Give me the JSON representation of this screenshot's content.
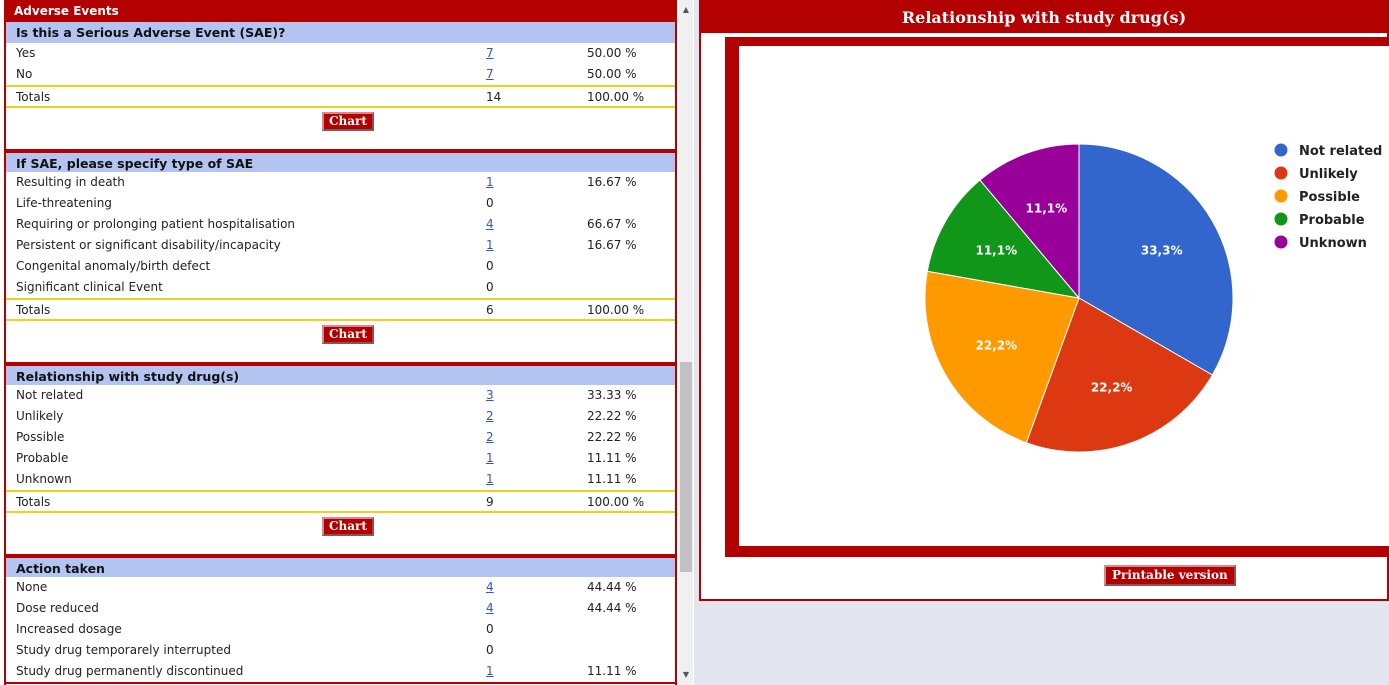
{
  "left_panel": {
    "title": "Adverse Events",
    "chart_button": "Chart",
    "sections": [
      {
        "question": "Is this a Serious Adverse Event (SAE)?",
        "rows": [
          {
            "label": "Yes",
            "count": "7",
            "pct": "50.00 %",
            "link": true
          },
          {
            "label": "No",
            "count": "7",
            "pct": "50.00 %",
            "link": true
          }
        ],
        "totals": {
          "label": "Totals",
          "count": "14",
          "pct": "100.00 %"
        }
      },
      {
        "question": "If SAE, please specify type of SAE",
        "rows": [
          {
            "label": "Resulting in death",
            "count": "1",
            "pct": "16.67 %",
            "link": true
          },
          {
            "label": "Life-threatening",
            "count": "0",
            "pct": "",
            "link": false
          },
          {
            "label": "Requiring or prolonging patient hospitalisation",
            "count": "4",
            "pct": "66.67 %",
            "link": true
          },
          {
            "label": "Persistent or significant disability/incapacity",
            "count": "1",
            "pct": "16.67 %",
            "link": true
          },
          {
            "label": "Congenital anomaly/birth defect",
            "count": "0",
            "pct": "",
            "link": false
          },
          {
            "label": "Significant clinical Event",
            "count": "0",
            "pct": "",
            "link": false
          }
        ],
        "totals": {
          "label": "Totals",
          "count": "6",
          "pct": "100.00 %"
        }
      },
      {
        "question": "Relationship with study drug(s)",
        "rows": [
          {
            "label": "Not related",
            "count": "3",
            "pct": "33.33 %",
            "link": true
          },
          {
            "label": "Unlikely",
            "count": "2",
            "pct": "22.22 %",
            "link": true
          },
          {
            "label": "Possible",
            "count": "2",
            "pct": "22.22 %",
            "link": true
          },
          {
            "label": "Probable",
            "count": "1",
            "pct": "11.11 %",
            "link": true
          },
          {
            "label": "Unknown",
            "count": "1",
            "pct": "11.11 %",
            "link": true
          }
        ],
        "totals": {
          "label": "Totals",
          "count": "9",
          "pct": "100.00 %"
        }
      },
      {
        "question": "Action taken",
        "rows": [
          {
            "label": "None",
            "count": "4",
            "pct": "44.44 %",
            "link": true
          },
          {
            "label": "Dose reduced",
            "count": "4",
            "pct": "44.44 %",
            "link": true
          },
          {
            "label": "Increased dosage",
            "count": "0",
            "pct": "",
            "link": false
          },
          {
            "label": "Study drug temporarely interrupted",
            "count": "0",
            "pct": "",
            "link": false
          },
          {
            "label": "Study drug permanently discontinued",
            "count": "1",
            "pct": "11.11 %",
            "link": true
          }
        ],
        "totals": null
      }
    ]
  },
  "right_panel": {
    "title": "Relationship with study drug(s)",
    "printable_button": "Printable version"
  },
  "colors": {
    "brand_red": "#b30000",
    "header_blue": "#b4c4f0",
    "totals_yellow": "#f0d21e"
  },
  "chart_data": {
    "type": "pie",
    "categories": [
      "Not related",
      "Unlikely",
      "Possible",
      "Probable",
      "Unknown"
    ],
    "values": [
      3,
      2,
      2,
      1,
      1
    ],
    "slice_labels": [
      "33,3%",
      "22,2%",
      "22,2%",
      "11,1%",
      "11,1%"
    ],
    "colors": [
      "#3366cc",
      "#dc3912",
      "#ff9900",
      "#109618",
      "#990099"
    ],
    "legend": "right"
  }
}
